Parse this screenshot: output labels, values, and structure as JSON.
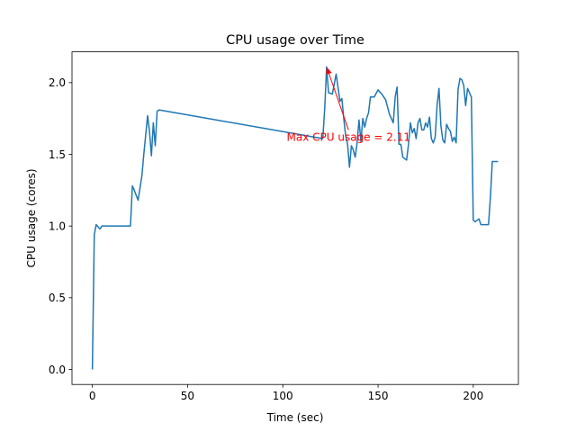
{
  "chart_data": {
    "type": "line",
    "title": "CPU usage over Time",
    "xlabel": "Time (sec)",
    "ylabel": "CPU usage (cores)",
    "xlim": [
      -10.7,
      223.7
    ],
    "ylim": [
      -0.105,
      2.215
    ],
    "xticks": [
      0,
      50,
      100,
      150,
      200
    ],
    "yticks": [
      0.0,
      0.5,
      1.0,
      1.5,
      2.0
    ],
    "xtick_labels": [
      "0",
      "50",
      "100",
      "150",
      "200"
    ],
    "ytick_labels": [
      "0.0",
      "0.5",
      "1.0",
      "1.5",
      "2.0"
    ],
    "line_color": "#1f77b4",
    "annotation_color": "#ff0000",
    "grid": false,
    "annotation": {
      "text": "Max CPU usage = 2.11",
      "point": [
        123,
        2.11
      ],
      "text_anchor": [
        134.5,
        1.67
      ]
    },
    "series": [
      {
        "x": [
          0,
          1,
          2,
          4,
          5,
          7,
          9,
          11,
          13,
          16,
          18,
          20,
          21,
          22,
          24,
          26,
          27,
          29,
          30,
          31,
          32,
          33,
          34,
          35,
          121,
          122,
          123,
          124,
          126,
          128,
          130,
          131,
          132,
          133,
          134,
          135,
          136,
          137,
          138,
          139,
          140,
          141,
          142,
          143,
          144,
          145,
          146,
          148,
          150,
          152,
          154,
          156,
          158,
          159,
          160,
          161,
          162,
          163,
          164,
          165,
          166,
          167,
          168,
          169,
          170,
          171,
          172,
          173,
          174,
          175,
          176,
          177,
          178,
          179,
          180,
          181,
          182,
          183,
          184,
          185,
          186,
          187,
          188,
          189,
          190,
          191,
          192,
          193,
          194,
          195,
          196,
          197,
          198,
          199,
          200,
          201,
          202,
          203,
          204,
          205,
          206,
          207,
          208,
          209,
          210,
          211,
          212,
          213
        ],
        "y": [
          0.0,
          0.94,
          1.01,
          0.98,
          1.0,
          1.0,
          1.0,
          1.0,
          1.0,
          1.0,
          1.0,
          1.0,
          1.28,
          1.25,
          1.18,
          1.35,
          1.5,
          1.77,
          1.66,
          1.49,
          1.72,
          1.56,
          1.8,
          1.81,
          1.61,
          1.82,
          2.11,
          1.93,
          1.92,
          2.06,
          1.87,
          1.89,
          1.75,
          1.63,
          1.57,
          1.41,
          1.56,
          1.53,
          1.48,
          1.58,
          1.74,
          1.59,
          1.75,
          1.69,
          1.75,
          1.79,
          1.9,
          1.9,
          1.95,
          1.92,
          1.88,
          1.78,
          1.72,
          1.9,
          1.97,
          1.57,
          1.57,
          1.48,
          1.47,
          1.46,
          1.57,
          1.72,
          1.65,
          1.68,
          1.61,
          1.72,
          1.75,
          1.67,
          1.67,
          1.72,
          1.69,
          1.76,
          1.61,
          1.58,
          1.62,
          1.84,
          1.96,
          1.7,
          1.6,
          1.58,
          1.71,
          1.68,
          1.66,
          1.59,
          1.62,
          1.58,
          1.95,
          2.03,
          2.02,
          1.98,
          1.84,
          1.96,
          1.93,
          1.9,
          1.04,
          1.03,
          1.04,
          1.05,
          1.01,
          1.01,
          1.01,
          1.01,
          1.01,
          1.2,
          1.45,
          1.45,
          1.45,
          1.45
        ]
      }
    ]
  }
}
